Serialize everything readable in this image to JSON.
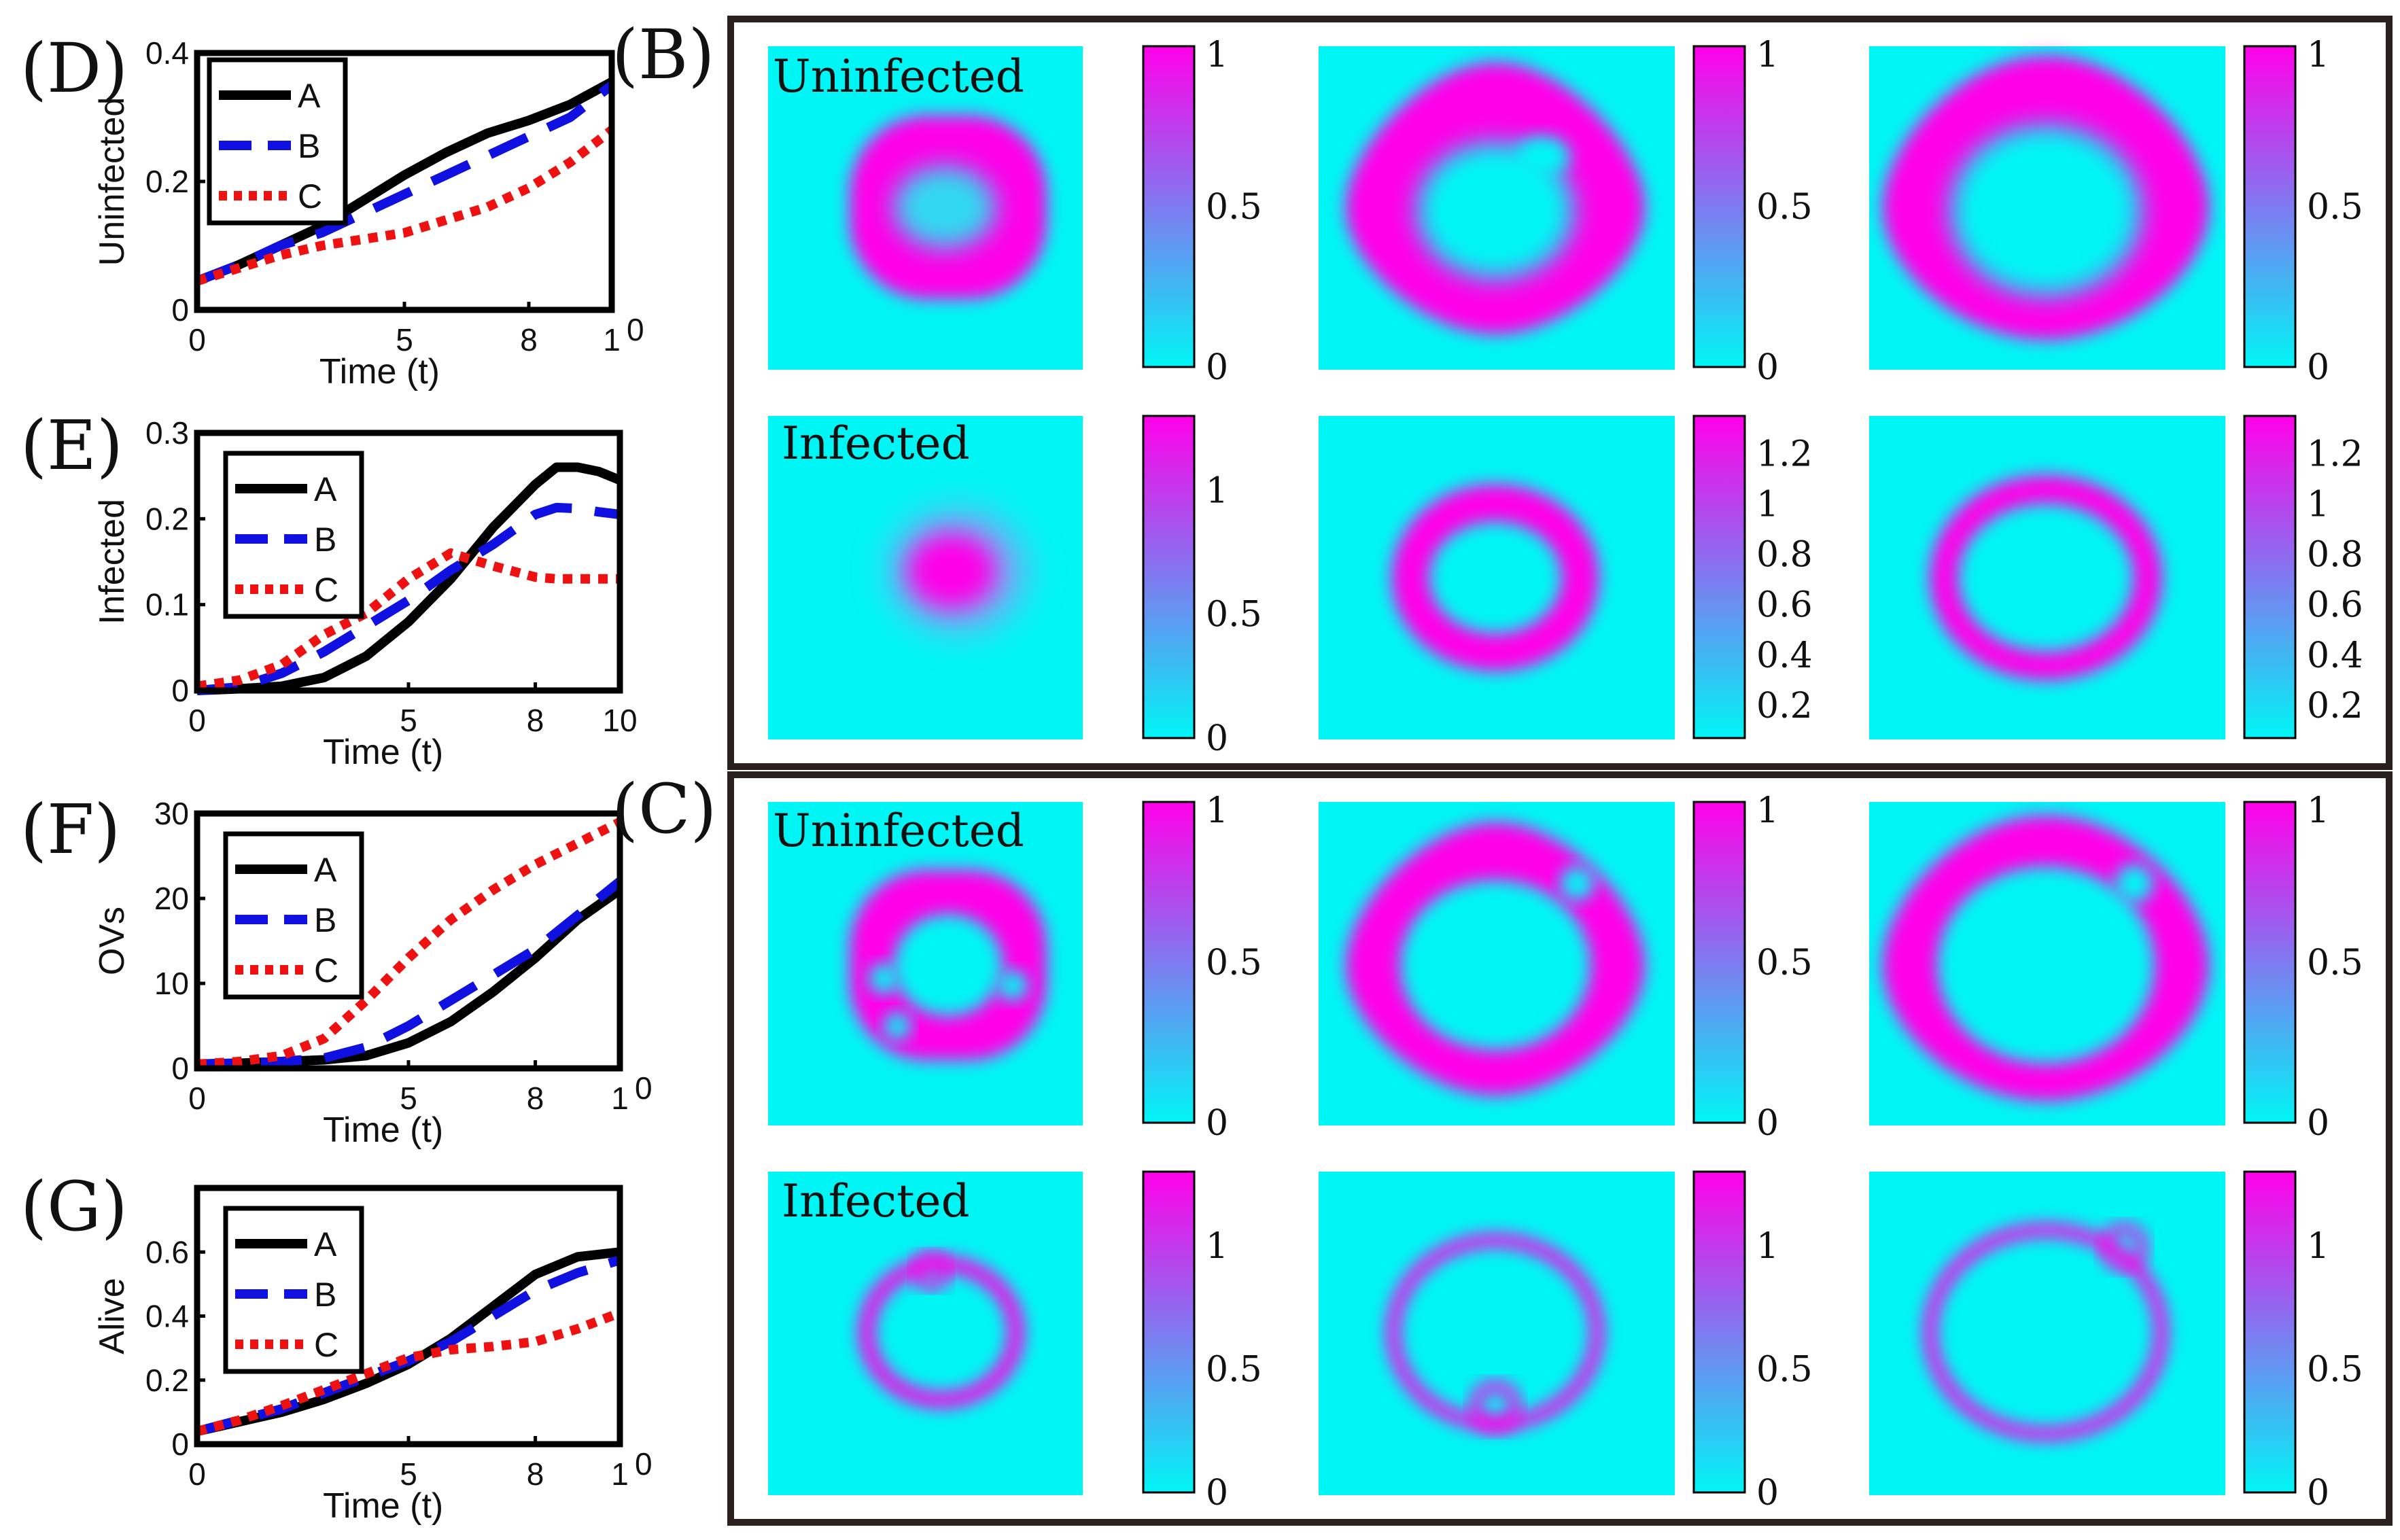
{
  "colors": {
    "A": "#000000",
    "B": "#1010e0",
    "C": "#ee1111",
    "cyan": "#00f5f5",
    "magenta": "#ff00e8",
    "frame": "#2a2020"
  },
  "panel_labels": {
    "D": "(D)",
    "E": "(E)",
    "F": "(F)",
    "G": "(G)",
    "B": "(B)",
    "C": "(C)"
  },
  "map_labels": {
    "b_top": "Uninfected",
    "b_bottom": "Infected",
    "c_top": "Uninfected",
    "c_bottom": "Infected"
  },
  "colorbars": {
    "b_top": [
      "1",
      "0.5",
      "0"
    ],
    "b_bottom_1": [
      "1",
      "0.5",
      "0"
    ],
    "b_bottom_2": [
      "1.2",
      "1",
      "0.8",
      "0.6",
      "0.4",
      "0.2"
    ],
    "b_bottom_3": [
      "1.2",
      "1",
      "0.8",
      "0.6",
      "0.4",
      "0.2"
    ],
    "c_top": [
      "1",
      "0.5",
      "0"
    ],
    "c_bottom": [
      "1",
      "0.5",
      "0"
    ]
  },
  "chart_data": [
    {
      "id": "D",
      "type": "line",
      "title": "",
      "xlabel": "Time (t)",
      "ylabel": "Uninfected",
      "xlim": [
        0,
        10
      ],
      "ylim": [
        0,
        0.4
      ],
      "xticks": [
        "0",
        "5",
        "8",
        "1"
      ],
      "xtick_extra": "0",
      "yticks": [
        "0.4",
        "0.2",
        "0"
      ],
      "legend": [
        "A",
        "B",
        "C"
      ],
      "legend_position": "top-left",
      "series": [
        {
          "name": "A",
          "x": [
            0,
            1,
            2,
            3,
            4,
            5,
            6,
            7,
            8,
            9,
            10
          ],
          "values": [
            0.045,
            0.07,
            0.1,
            0.13,
            0.17,
            0.21,
            0.245,
            0.275,
            0.295,
            0.32,
            0.355
          ]
        },
        {
          "name": "B",
          "x": [
            0,
            1,
            2,
            3,
            4,
            5,
            6,
            7,
            8,
            9,
            10
          ],
          "values": [
            0.045,
            0.07,
            0.1,
            0.12,
            0.15,
            0.18,
            0.21,
            0.24,
            0.27,
            0.3,
            0.35
          ]
        },
        {
          "name": "C",
          "x": [
            0,
            1,
            2,
            3,
            4,
            5,
            6,
            7,
            8,
            9,
            10
          ],
          "values": [
            0.045,
            0.065,
            0.085,
            0.1,
            0.11,
            0.12,
            0.14,
            0.16,
            0.19,
            0.23,
            0.28
          ]
        }
      ]
    },
    {
      "id": "E",
      "type": "line",
      "title": "",
      "xlabel": "Time (t)",
      "ylabel": "Infected",
      "xlim": [
        0,
        10
      ],
      "ylim": [
        0,
        0.3
      ],
      "xticks": [
        "0",
        "5",
        "8",
        "10"
      ],
      "yticks": [
        "0.3",
        "0.2",
        "0.1",
        "0"
      ],
      "legend": [
        "A",
        "B",
        "C"
      ],
      "legend_position": "top-left",
      "series": [
        {
          "name": "A",
          "x": [
            0,
            1,
            2,
            3,
            4,
            5,
            6,
            7,
            8,
            8.5,
            9,
            9.5,
            10
          ],
          "values": [
            0,
            0.002,
            0.005,
            0.015,
            0.04,
            0.08,
            0.13,
            0.19,
            0.24,
            0.26,
            0.26,
            0.255,
            0.245
          ]
        },
        {
          "name": "B",
          "x": [
            0,
            1,
            2,
            3,
            4,
            5,
            6,
            7,
            8,
            8.5,
            9,
            9.5,
            10
          ],
          "values": [
            0,
            0.004,
            0.02,
            0.045,
            0.075,
            0.105,
            0.14,
            0.17,
            0.205,
            0.213,
            0.212,
            0.208,
            0.205
          ]
        },
        {
          "name": "C",
          "x": [
            0,
            1,
            2,
            3,
            4,
            5,
            6,
            7,
            8,
            8.5,
            9,
            9.5,
            10
          ],
          "values": [
            0.005,
            0.012,
            0.03,
            0.065,
            0.09,
            0.13,
            0.16,
            0.145,
            0.132,
            0.13,
            0.13,
            0.13,
            0.13
          ]
        }
      ]
    },
    {
      "id": "F",
      "type": "line",
      "title": "",
      "xlabel": "Time (t)",
      "ylabel": "OVs",
      "xlim": [
        0,
        10
      ],
      "ylim": [
        0,
        30
      ],
      "xticks": [
        "0",
        "5",
        "8",
        "1"
      ],
      "xtick_extra": "0",
      "yticks": [
        "30",
        "20",
        "10",
        "0"
      ],
      "legend": [
        "A",
        "B",
        "C"
      ],
      "legend_position": "top-left",
      "series": [
        {
          "name": "A",
          "x": [
            0,
            1,
            2,
            3,
            4,
            5,
            6,
            7,
            8,
            9,
            10
          ],
          "values": [
            0.5,
            0.6,
            0.8,
            1,
            1.5,
            3,
            5.5,
            9,
            13,
            17.5,
            21
          ]
        },
        {
          "name": "B",
          "x": [
            0,
            1,
            2,
            3,
            4,
            5,
            6,
            7,
            8,
            9,
            10
          ],
          "values": [
            0.5,
            0.6,
            0.8,
            1.2,
            2.5,
            5,
            8,
            11,
            14,
            18,
            22
          ]
        },
        {
          "name": "C",
          "x": [
            0,
            1,
            2,
            3,
            4,
            5,
            6,
            7,
            8,
            9,
            10
          ],
          "values": [
            0.5,
            0.8,
            1.5,
            3.5,
            8,
            13,
            17.5,
            21,
            24,
            26.5,
            29
          ]
        }
      ]
    },
    {
      "id": "G",
      "type": "line",
      "title": "",
      "xlabel": "Time (t)",
      "ylabel": "Alive",
      "xlim": [
        0,
        10
      ],
      "ylim": [
        0,
        0.8
      ],
      "xticks": [
        "0",
        "5",
        "8",
        "1"
      ],
      "xtick_extra": "0",
      "yticks": [
        "0.6",
        "0.4",
        "0.2",
        "0"
      ],
      "legend": [
        "A",
        "B",
        "C"
      ],
      "legend_position": "top-left",
      "series": [
        {
          "name": "A",
          "x": [
            0,
            1,
            2,
            3,
            4,
            5,
            6,
            7,
            8,
            9,
            10
          ],
          "values": [
            0.04,
            0.07,
            0.1,
            0.14,
            0.19,
            0.25,
            0.33,
            0.43,
            0.53,
            0.585,
            0.6
          ]
        },
        {
          "name": "B",
          "x": [
            0,
            1,
            2,
            3,
            4,
            5,
            6,
            7,
            8,
            9,
            10
          ],
          "values": [
            0.04,
            0.075,
            0.11,
            0.16,
            0.21,
            0.26,
            0.32,
            0.4,
            0.48,
            0.535,
            0.575
          ]
        },
        {
          "name": "C",
          "x": [
            0,
            1,
            2,
            3,
            4,
            5,
            6,
            7,
            8,
            9,
            10
          ],
          "values": [
            0.04,
            0.075,
            0.12,
            0.17,
            0.22,
            0.27,
            0.295,
            0.305,
            0.32,
            0.36,
            0.41
          ]
        }
      ]
    }
  ]
}
